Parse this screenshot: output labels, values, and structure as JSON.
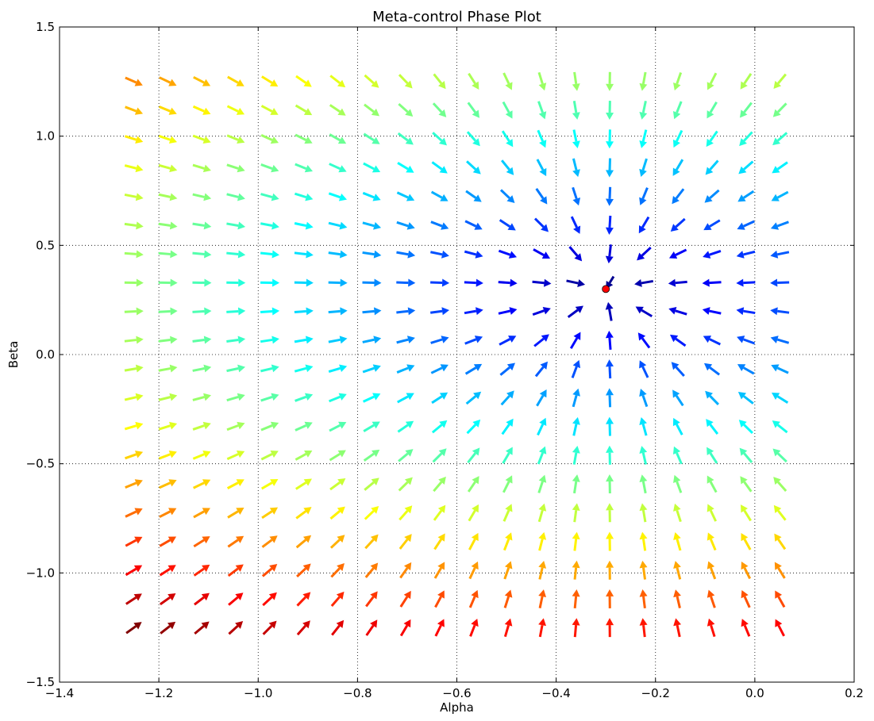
{
  "chart_data": {
    "type": "quiver",
    "title": "Meta-control Phase Plot",
    "xlabel": "Alpha",
    "ylabel": "Beta",
    "xlim": [
      -1.4,
      0.2
    ],
    "ylim": [
      -1.5,
      1.5
    ],
    "x_ticks": [
      -1.4,
      -1.2,
      -1.0,
      -0.8,
      -0.6,
      -0.4,
      -0.2,
      0.0,
      0.2
    ],
    "x_tick_labels": [
      "−1.4",
      "−1.2",
      "−1.0",
      "−0.8",
      "−0.6",
      "−0.4",
      "−0.2",
      "0.0",
      "0.2"
    ],
    "y_ticks": [
      -1.5,
      -1.0,
      -0.5,
      0.0,
      0.5,
      1.0,
      1.5
    ],
    "y_tick_labels": [
      "−1.5",
      "−1.0",
      "−0.5",
      "0.0",
      "0.5",
      "1.0",
      "1.5"
    ],
    "grid": true,
    "colormap": "jet",
    "field": {
      "alpha_range": [
        -1.25,
        0.05
      ],
      "beta_range": [
        -1.25,
        1.25
      ],
      "alpha_count": 20,
      "beta_count": 20
    },
    "fixed_point": {
      "alpha": -0.3,
      "beta": 0.3,
      "color": "#ff0000"
    }
  }
}
